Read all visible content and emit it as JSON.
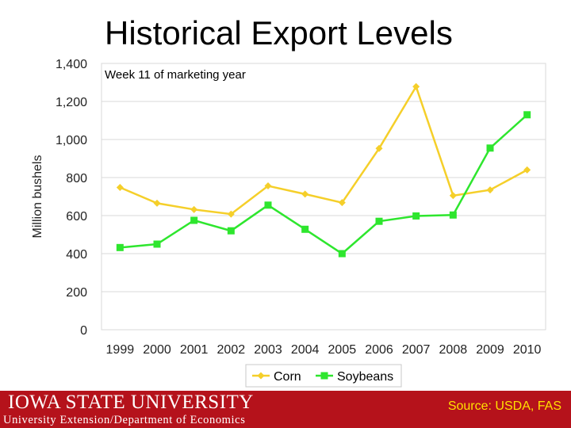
{
  "slide": {
    "title": "Historical Export Levels"
  },
  "footer": {
    "university_logo_text": "IOWA STATE UNIVERSITY",
    "department": "University Extension/Department of Economics",
    "source": "Source: USDA, FAS",
    "background_color": "#b5121b",
    "source_color": "#ffe000"
  },
  "chart_data": {
    "type": "line",
    "subtitle": "Week 11 of marketing year",
    "xlabel": "",
    "ylabel": "Million bushels",
    "categories": [
      "1999",
      "2000",
      "2001",
      "2002",
      "2003",
      "2004",
      "2005",
      "2006",
      "2007",
      "2008",
      "2009",
      "2010"
    ],
    "ylim": [
      0,
      1400
    ],
    "yticks": [
      0,
      200,
      400,
      600,
      800,
      1000,
      1200,
      1400
    ],
    "ytick_labels": [
      "0",
      "200",
      "400",
      "600",
      "800",
      "1,000",
      "1,200",
      "1,400"
    ],
    "grid": true,
    "legend_position": "bottom",
    "series": [
      {
        "name": "Corn",
        "color": "#f5cf2a",
        "marker": "diamond",
        "values": [
          748,
          665,
          632,
          608,
          756,
          713,
          668,
          953,
          1278,
          705,
          735,
          840
        ]
      },
      {
        "name": "Soybeans",
        "color": "#2ee62e",
        "marker": "square",
        "values": [
          432,
          450,
          575,
          520,
          655,
          528,
          400,
          570,
          598,
          603,
          955,
          1130
        ]
      }
    ]
  }
}
